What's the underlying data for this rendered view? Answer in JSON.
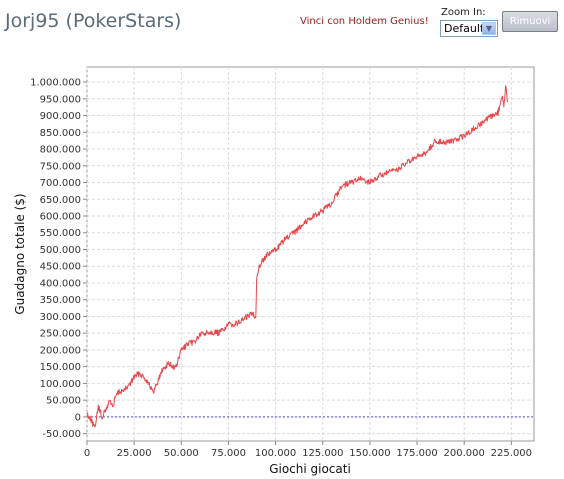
{
  "header": {
    "title": "Jorj95 (PokerStars)",
    "promo_link": "Vinci con Holdem Genius!",
    "zoom_label": "Zoom In:",
    "zoom_value": "Default",
    "remove_button": "Rimuovi"
  },
  "chart_data": {
    "type": "line",
    "xlabel": "Giochi giocati",
    "ylabel": "Guadagno totale   ($)",
    "xlim": [
      0,
      237000
    ],
    "ylim": [
      -72000,
      1045000
    ],
    "x_ticks": [
      0,
      25000,
      50000,
      75000,
      100000,
      125000,
      150000,
      175000,
      200000,
      225000
    ],
    "x_tick_labels": [
      "0",
      "25.000",
      "50.000",
      "75.000",
      "100.000",
      "125.000",
      "150.000",
      "175.000",
      "200.000",
      "225.000"
    ],
    "y_ticks": [
      -50000,
      0,
      50000,
      100000,
      150000,
      200000,
      250000,
      300000,
      350000,
      400000,
      450000,
      500000,
      550000,
      600000,
      650000,
      700000,
      750000,
      800000,
      850000,
      900000,
      950000,
      1000000
    ],
    "y_tick_labels": [
      "-50.000",
      "0",
      "50.000",
      "100.000",
      "150.000",
      "200.000",
      "250.000",
      "300.000",
      "350.000",
      "400.000",
      "450.000",
      "500.000",
      "550.000",
      "600.000",
      "650.000",
      "700.000",
      "750.000",
      "800.000",
      "850.000",
      "900.000",
      "950.000",
      "1.000.000"
    ],
    "grid": true,
    "line_color": "#e8474b",
    "zero_line_color": "#5555bb",
    "series": [
      {
        "x": [
          0,
          2000,
          4000,
          6000,
          8000,
          10000,
          12000,
          14000,
          15000,
          17000,
          20000,
          23000,
          25000,
          28000,
          30000,
          33000,
          35000,
          37000,
          40000,
          43000,
          47000,
          50000,
          53000,
          57000,
          60000,
          65000,
          70000,
          75000,
          80000,
          85000,
          88000,
          89500,
          90000,
          92000,
          95000,
          100000,
          105000,
          110000,
          115000,
          120000,
          125000,
          130000,
          135000,
          140000,
          145000,
          150000,
          155000,
          160000,
          165000,
          170000,
          175000,
          180000,
          185000,
          190000,
          195000,
          200000,
          205000,
          210000,
          215000,
          218000,
          220000,
          221000,
          222000,
          223000
        ],
        "y": [
          10000,
          -5000,
          -35000,
          30000,
          0,
          20000,
          50000,
          30000,
          60000,
          75000,
          80000,
          100000,
          120000,
          130000,
          120000,
          100000,
          70000,
          100000,
          140000,
          160000,
          145000,
          200000,
          215000,
          225000,
          245000,
          255000,
          250000,
          275000,
          280000,
          300000,
          310000,
          300000,
          420000,
          460000,
          480000,
          500000,
          530000,
          550000,
          580000,
          600000,
          615000,
          640000,
          690000,
          700000,
          710000,
          700000,
          720000,
          730000,
          740000,
          760000,
          775000,
          790000,
          825000,
          820000,
          825000,
          840000,
          860000,
          880000,
          900000,
          910000,
          960000,
          930000,
          985000,
          940000
        ]
      }
    ]
  }
}
